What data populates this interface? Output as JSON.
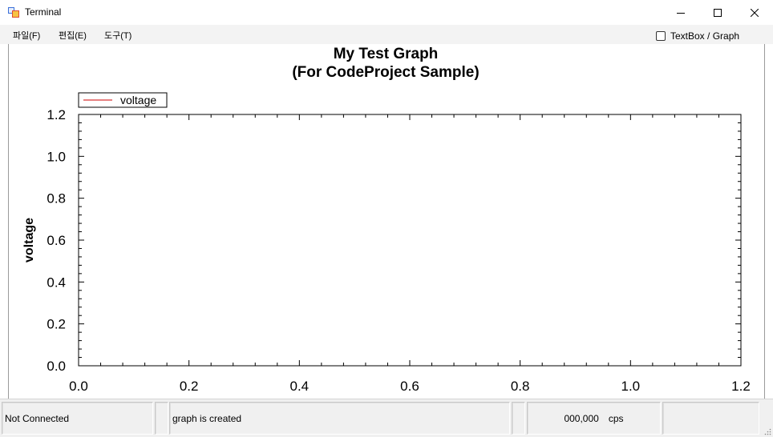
{
  "window": {
    "title": "Terminal"
  },
  "menu": {
    "items": [
      {
        "label": "파일(F)"
      },
      {
        "label": "편집(E)"
      },
      {
        "label": "도구(T)"
      }
    ],
    "toggle_label": "TextBox / Graph",
    "toggle_checked": false
  },
  "chart_data": {
    "type": "line",
    "title": "My Test Graph",
    "subtitle": "(For CodeProject Sample)",
    "xlabel": "",
    "ylabel": "voltage",
    "xlim": [
      0.0,
      1.2
    ],
    "ylim": [
      0.0,
      1.2
    ],
    "x_ticks": [
      "0.0",
      "0.2",
      "0.4",
      "0.6",
      "0.8",
      "1.0",
      "1.2"
    ],
    "y_ticks": [
      "0.0",
      "0.2",
      "0.4",
      "0.6",
      "0.8",
      "1.0",
      "1.2"
    ],
    "grid": false,
    "legend_position": "top-left",
    "series": [
      {
        "name": "voltage",
        "color": "#cc0000",
        "x": [],
        "y": []
      }
    ]
  },
  "status": {
    "connection": "Not Connected",
    "message": "graph is created",
    "rate_value": "000,000",
    "rate_unit": "cps"
  }
}
